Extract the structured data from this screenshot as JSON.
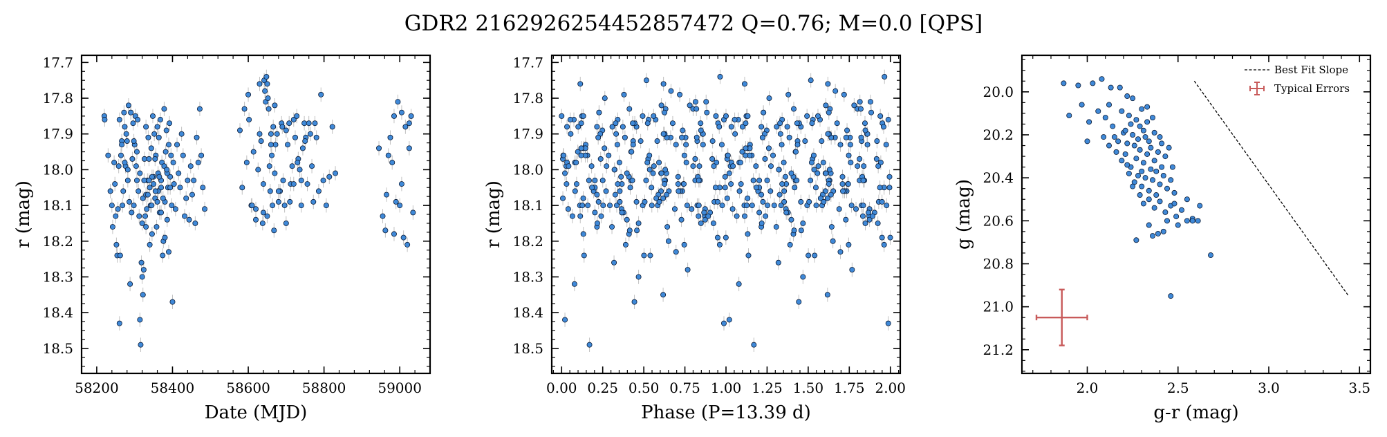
{
  "title": "GDR2 2162926254452857472  Q=0.76; M=0.0 [QPS]",
  "colors": {
    "point": "#3f89d8",
    "point_edge": "#0b1a33",
    "errorbar": "#c0c0c0",
    "typical_error": "#c85a5a",
    "slope_line": "#000000"
  },
  "chart_data": [
    {
      "type": "scatter",
      "panel": "lightcurve",
      "xlabel": "Date (MJD)",
      "ylabel": "r (mag)",
      "xlim": [
        58160,
        59080
      ],
      "ylim": [
        18.57,
        17.68
      ],
      "y_inverted": true,
      "xticks": [
        58200,
        58400,
        58600,
        58800,
        59000
      ],
      "yticks": [
        17.7,
        17.8,
        17.9,
        18.0,
        18.1,
        18.2,
        18.3,
        18.4,
        18.5
      ],
      "mjd": [
        58220,
        58221,
        58230,
        58236,
        58240,
        58242,
        58246,
        58248,
        58250,
        58252,
        58254,
        58256,
        58258,
        58260,
        58262,
        58264,
        58266,
        58268,
        58270,
        58272,
        58274,
        58276,
        58278,
        58280,
        58282,
        58284,
        58286,
        58288,
        58290,
        58292,
        58294,
        58296,
        58298,
        58300,
        58302,
        58304,
        58306,
        58308,
        58310,
        58312,
        58314,
        58316,
        58318,
        58320,
        58322,
        58324,
        58326,
        58328,
        58330,
        58332,
        58334,
        58336,
        58338,
        58340,
        58342,
        58344,
        58346,
        58348,
        58350,
        58352,
        58354,
        58356,
        58358,
        58360,
        58362,
        58364,
        58366,
        58368,
        58370,
        58372,
        58374,
        58376,
        58378,
        58380,
        58382,
        58384,
        58386,
        58388,
        58390,
        58392,
        58394,
        58396,
        58398,
        58400,
        58402,
        58404,
        58408,
        58412,
        58416,
        58420,
        58424,
        58428,
        58432,
        58436,
        58440,
        58444,
        58448,
        58452,
        58456,
        58460,
        58464,
        58468,
        58472,
        58476,
        58480,
        58485,
        58260,
        58266,
        58274,
        58282,
        58290,
        58298,
        58306,
        58314,
        58322,
        58330,
        58338,
        58346,
        58354,
        58362,
        58370,
        58378,
        58386,
        58394,
        58320,
        58330,
        58340,
        58350,
        58360,
        58370,
        58380,
        58390,
        58325,
        58335,
        58345,
        58355,
        58365,
        58375,
        58385,
        58578,
        58584,
        58590,
        58596,
        58602,
        58608,
        58614,
        58620,
        58626,
        58630,
        58634,
        58638,
        58640,
        58642,
        58644,
        58646,
        58648,
        58650,
        58652,
        58654,
        58656,
        58658,
        58660,
        58662,
        58664,
        58666,
        58668,
        58670,
        58672,
        58676,
        58680,
        58684,
        58688,
        58692,
        58696,
        58700,
        58704,
        58708,
        58712,
        58716,
        58720,
        58724,
        58728,
        58732,
        58736,
        58740,
        58744,
        58748,
        58752,
        58756,
        58760,
        58764,
        58768,
        58772,
        58776,
        58780,
        58786,
        58792,
        58798,
        58806,
        58814,
        58822,
        58830,
        58600,
        58610,
        58620,
        58630,
        58640,
        58650,
        58660,
        58670,
        58680,
        58690,
        58700,
        58710,
        58720,
        58730,
        58740,
        58750,
        58945,
        58955,
        58962,
        58970,
        58975,
        58980,
        58985,
        58990,
        58995,
        59000,
        59005,
        59010,
        59015,
        59020,
        59025,
        59030,
        59035,
        58965,
        58985,
        59005,
        59025
      ],
      "r": [
        17.85,
        17.86,
        17.96,
        18.06,
        18.1,
        18.16,
        17.98,
        18.04,
        18.13,
        18.21,
        18.24,
        18.11,
        17.99,
        18.43,
        18.24,
        17.96,
        17.92,
        18.1,
        18.06,
        17.84,
        17.88,
        17.99,
        17.9,
        17.92,
        18.03,
        17.82,
        18.09,
        18.32,
        17.84,
        18.12,
        17.97,
        17.87,
        18.1,
        17.93,
        17.85,
        17.99,
        18.03,
        17.86,
        18.06,
        18.13,
        18.42,
        18.49,
        18.26,
        18.3,
        18.35,
        18.28,
        17.97,
        18.13,
        17.88,
        18.11,
        18.03,
        17.91,
        17.97,
        18.05,
        18.1,
        17.94,
        18.18,
        17.85,
        18.02,
        17.9,
        18.08,
        17.96,
        18.16,
        17.88,
        18.01,
        17.91,
        18.12,
        17.86,
        18.05,
        17.98,
        18.24,
        18.2,
        17.83,
        18.09,
        17.95,
        17.89,
        18.14,
        18.05,
        17.93,
        17.87,
        18.02,
        17.96,
        18.1,
        18.37,
        17.98,
        18.04,
        18.11,
        17.93,
        18.01,
        18.05,
        17.9,
        17.96,
        18.13,
        18.08,
        18.03,
        18.14,
        17.99,
        18.07,
        18.03,
        18.15,
        17.91,
        17.98,
        17.83,
        17.96,
        18.05,
        18.11,
        17.86,
        17.93,
        17.98,
        18.0,
        17.84,
        17.92,
        17.95,
        18.01,
        18.08,
        18.07,
        18.03,
        18.02,
        17.97,
        18.06,
        18.03,
        17.99,
        18.01,
        18.05,
        18.15,
        18.16,
        18.21,
        18.04,
        18.09,
        18.12,
        18.19,
        18.23,
        18.03,
        18.07,
        18.1,
        18.06,
        18.02,
        18.08,
        18.0,
        17.89,
        18.05,
        17.83,
        17.98,
        17.86,
        18.1,
        17.95,
        18.11,
        18.0,
        17.76,
        17.92,
        18.15,
        18.12,
        17.75,
        17.78,
        17.81,
        17.74,
        17.76,
        17.8,
        17.83,
        17.99,
        18.06,
        17.9,
        17.96,
        18.1,
        17.88,
        18.17,
        18.01,
        17.93,
        17.9,
        18.09,
        18.06,
        17.87,
        18.03,
        18.1,
        17.89,
        17.93,
        17.87,
        18.04,
        17.99,
        17.86,
        17.91,
        17.85,
        17.97,
        18.0,
        18.03,
        17.94,
        17.87,
        17.91,
        18.04,
        17.87,
        17.9,
        17.99,
        18.09,
        17.87,
        17.91,
        18.06,
        17.79,
        18.03,
        18.1,
        18.02,
        17.88,
        18.01,
        17.79,
        18.1,
        18.14,
        17.9,
        18.04,
        18.13,
        17.93,
        17.82,
        18.06,
        17.88,
        18.15,
        18.09,
        18.04,
        17.98,
        18.1,
        17.92,
        17.94,
        18.13,
        18.17,
        17.96,
        17.91,
        17.98,
        18.18,
        18.09,
        17.81,
        18.1,
        17.84,
        18.19,
        17.88,
        18.21,
        17.87,
        17.85,
        18.12,
        18.07,
        17.85,
        18.04,
        17.94,
        17.99,
        17.91,
        18.02
      ],
      "r_err": 0.02
    },
    {
      "type": "scatter",
      "panel": "phase",
      "xlabel": "Phase (P=13.39 d)",
      "ylabel": "r (mag)",
      "period_days": 13.39,
      "xlim": [
        -0.06,
        2.06
      ],
      "ylim": [
        18.57,
        17.68
      ],
      "y_inverted": true,
      "xticks": [
        0.0,
        0.25,
        0.5,
        0.75,
        1.0,
        1.25,
        1.5,
        1.75,
        2.0
      ],
      "yticks": [
        17.7,
        17.8,
        17.9,
        18.0,
        18.1,
        18.2,
        18.3,
        18.4,
        18.5
      ],
      "note": "points repeated over two cycles (phase and phase+1)"
    },
    {
      "type": "scatter",
      "panel": "color-magnitude",
      "xlabel": "g-r (mag)",
      "ylabel": "g (mag)",
      "xlim": [
        1.64,
        3.56
      ],
      "ylim": [
        21.31,
        19.83
      ],
      "y_inverted": true,
      "xticks": [
        2.0,
        2.5,
        3.0,
        3.5
      ],
      "yticks": [
        20.0,
        20.2,
        20.4,
        20.6,
        20.8,
        21.0,
        21.2
      ],
      "points": [
        [
          1.87,
          19.96
        ],
        [
          1.95,
          19.97
        ],
        [
          2.03,
          19.96
        ],
        [
          2.08,
          19.94
        ],
        [
          2.13,
          19.98
        ],
        [
          2.18,
          19.98
        ],
        [
          2.22,
          20.02
        ],
        [
          2.25,
          20.03
        ],
        [
          1.9,
          20.11
        ],
        [
          1.97,
          20.06
        ],
        [
          2.01,
          20.14
        ],
        [
          2.06,
          20.09
        ],
        [
          2.1,
          20.12
        ],
        [
          2.14,
          20.16
        ],
        [
          2.19,
          20.09
        ],
        [
          2.23,
          20.11
        ],
        [
          2.27,
          20.13
        ],
        [
          2.3,
          20.08
        ],
        [
          2.33,
          20.14
        ],
        [
          2.36,
          20.12
        ],
        [
          2.0,
          20.23
        ],
        [
          2.09,
          20.21
        ],
        [
          2.12,
          20.25
        ],
        [
          2.15,
          20.21
        ],
        [
          2.17,
          20.23
        ],
        [
          2.2,
          20.19
        ],
        [
          2.22,
          20.24
        ],
        [
          2.25,
          20.2
        ],
        [
          2.28,
          20.22
        ],
        [
          2.31,
          20.18
        ],
        [
          2.34,
          20.23
        ],
        [
          2.37,
          20.19
        ],
        [
          2.4,
          20.21
        ],
        [
          2.29,
          20.16
        ],
        [
          2.32,
          20.21
        ],
        [
          2.26,
          20.25
        ],
        [
          2.16,
          20.28
        ],
        [
          2.19,
          20.32
        ],
        [
          2.21,
          20.29
        ],
        [
          2.24,
          20.35
        ],
        [
          2.27,
          20.31
        ],
        [
          2.29,
          20.27
        ],
        [
          2.31,
          20.33
        ],
        [
          2.33,
          20.29
        ],
        [
          2.35,
          20.36
        ],
        [
          2.37,
          20.32
        ],
        [
          2.39,
          20.28
        ],
        [
          2.41,
          20.35
        ],
        [
          2.43,
          20.3
        ],
        [
          2.45,
          20.26
        ],
        [
          2.23,
          20.38
        ],
        [
          2.26,
          20.42
        ],
        [
          2.28,
          20.39
        ],
        [
          2.3,
          20.44
        ],
        [
          2.32,
          20.4
        ],
        [
          2.34,
          20.46
        ],
        [
          2.36,
          20.41
        ],
        [
          2.38,
          20.37
        ],
        [
          2.4,
          20.43
        ],
        [
          2.42,
          20.39
        ],
        [
          2.44,
          20.45
        ],
        [
          2.46,
          20.41
        ],
        [
          2.48,
          20.47
        ],
        [
          2.29,
          20.48
        ],
        [
          2.31,
          20.52
        ],
        [
          2.34,
          20.5
        ],
        [
          2.37,
          20.54
        ],
        [
          2.4,
          20.51
        ],
        [
          2.43,
          20.56
        ],
        [
          2.46,
          20.53
        ],
        [
          2.49,
          20.58
        ],
        [
          2.52,
          20.55
        ],
        [
          2.55,
          20.6
        ],
        [
          2.58,
          20.59
        ],
        [
          2.61,
          20.6
        ],
        [
          2.62,
          20.53
        ],
        [
          2.55,
          20.5
        ],
        [
          2.44,
          20.6
        ],
        [
          2.39,
          20.66
        ],
        [
          2.36,
          20.67
        ],
        [
          2.34,
          20.62
        ],
        [
          2.27,
          20.69
        ],
        [
          2.42,
          20.65
        ],
        [
          2.5,
          20.62
        ],
        [
          2.68,
          20.76
        ],
        [
          2.46,
          20.95
        ],
        [
          2.21,
          20.18
        ],
        [
          2.35,
          20.26
        ],
        [
          2.38,
          20.48
        ],
        [
          2.25,
          20.44
        ],
        [
          2.33,
          20.07
        ],
        [
          2.41,
          20.24
        ],
        [
          2.22,
          20.34
        ],
        [
          2.47,
          20.35
        ],
        [
          2.3,
          20.37
        ],
        [
          2.24,
          20.15
        ],
        [
          2.12,
          20.06
        ],
        [
          2.48,
          20.52
        ],
        [
          2.58,
          20.6
        ]
      ],
      "best_fit_slope": {
        "x": [
          2.59,
          3.44
        ],
        "y": [
          19.95,
          20.95
        ]
      },
      "typical_error": {
        "x": 1.86,
        "y": 21.05,
        "xerr": 0.14,
        "yerr": 0.13
      },
      "legend": {
        "placement": "top-right",
        "entries": [
          "Best Fit Slope",
          "Typical Errors"
        ]
      }
    }
  ]
}
